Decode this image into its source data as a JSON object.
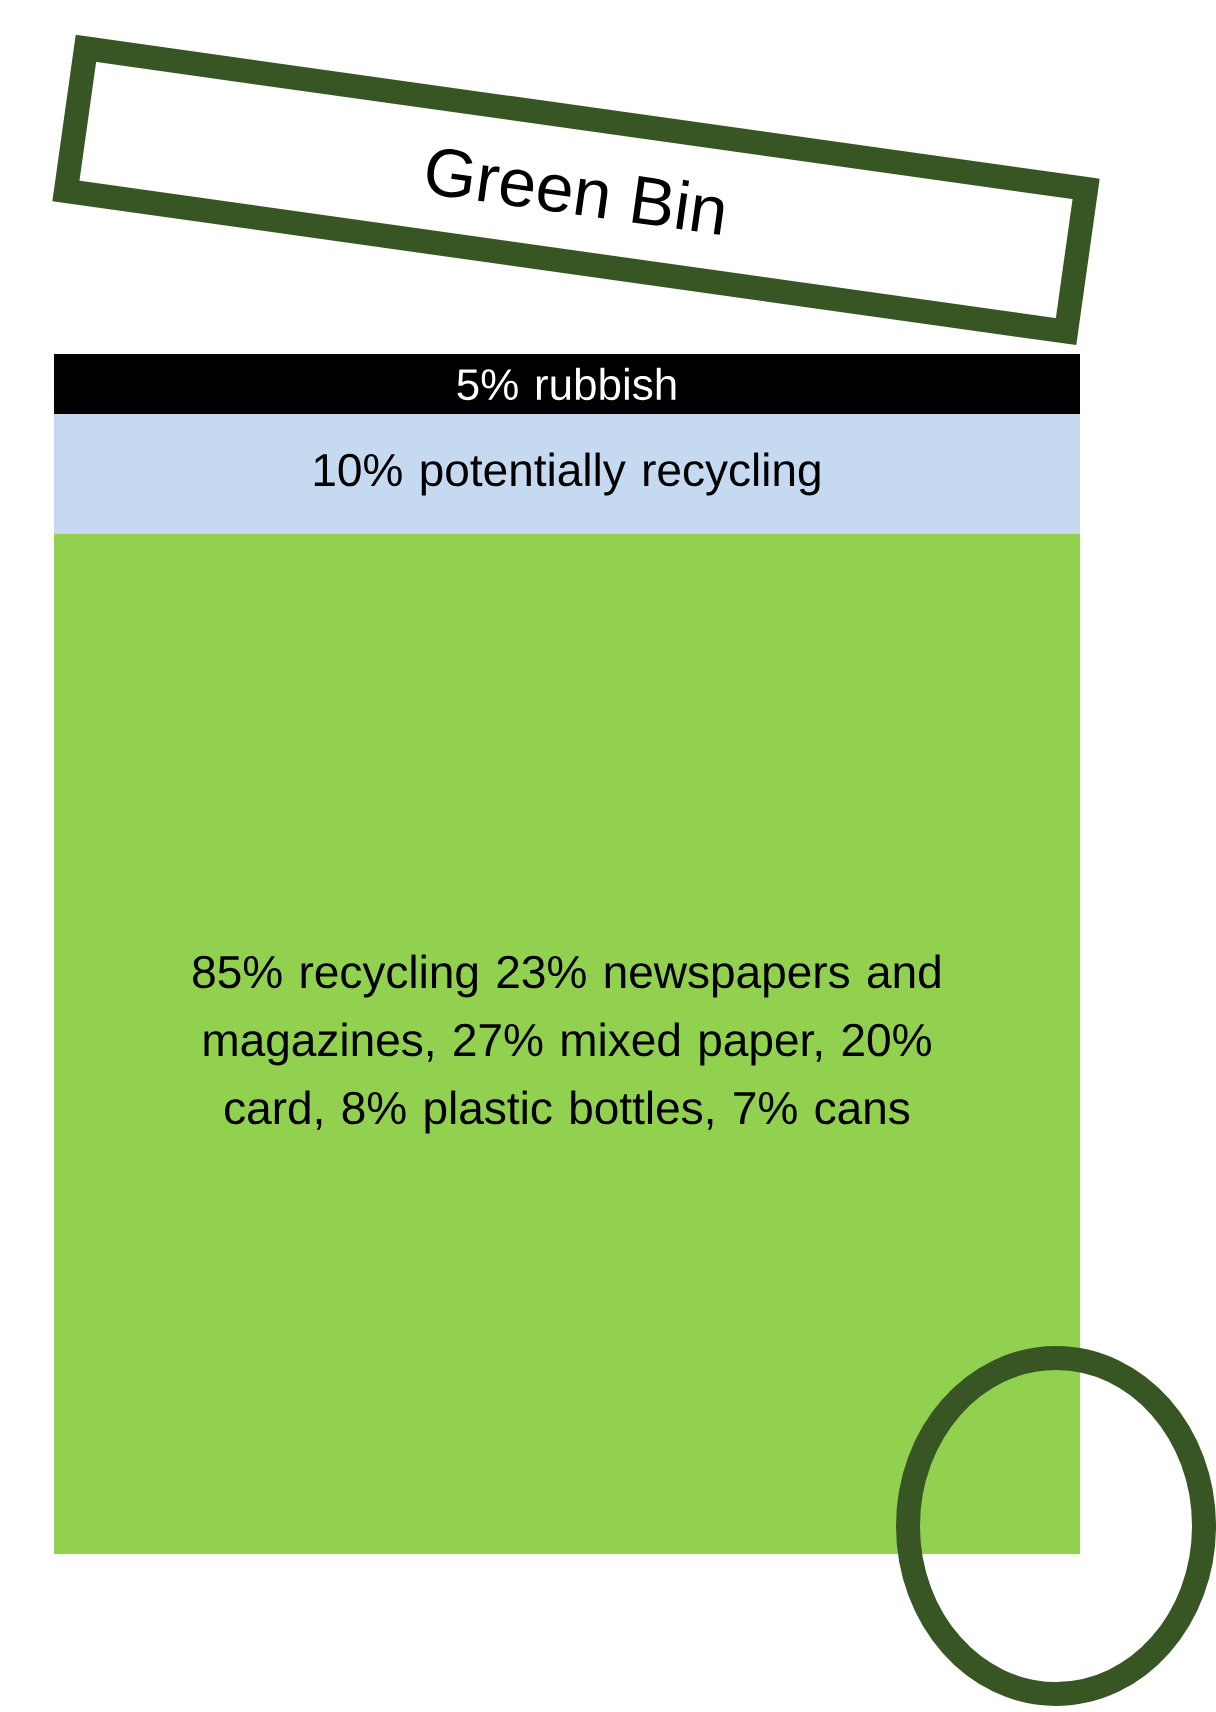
{
  "chart_data": {
    "type": "bar",
    "stacked": true,
    "title": "Green Bin",
    "categories": [
      null
    ],
    "tick_labels": false,
    "series": [
      {
        "color": "#92d050",
        "values": [
          85
        ],
        "value_labels": [
          "85% recycling 23% newspapers and magazines, 27% mixed paper, 20% card, 8% plastic bottles, 7% cans"
        ]
      },
      {
        "color": "#c5d9f1",
        "values": [
          10
        ],
        "value_labels": [
          "10% potentially recycling"
        ]
      },
      {
        "color": "#000000",
        "values": [
          5
        ],
        "value_labels": [
          "5% rubbish"
        ]
      }
    ]
  }
}
